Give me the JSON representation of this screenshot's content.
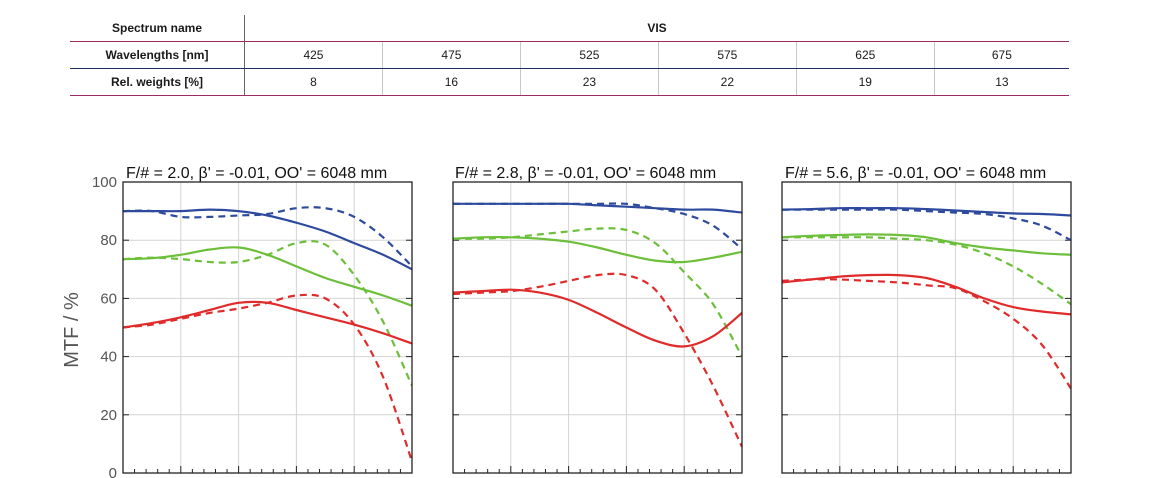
{
  "table": {
    "spectrum_label": "Spectrum name",
    "spectrum_value": "VIS",
    "wavelengths_label": "Wavelengths [nm]",
    "wavelengths": [
      "425",
      "475",
      "525",
      "575",
      "625",
      "675"
    ],
    "weights_label": "Rel. weights [%]",
    "weights": [
      "8",
      "16",
      "23",
      "22",
      "19",
      "13"
    ]
  },
  "colors": {
    "blue": "#2e4a9e",
    "green": "#6cbf3a",
    "red": "#e02b2b",
    "grid": "#d4d4d4",
    "frame": "#222222"
  },
  "chart_data": [
    {
      "type": "line",
      "title": "F/# = 2.0, β' = -0.01, OO' = 6048 mm",
      "ylabel": "MTF / %",
      "ylim": [
        0,
        100
      ],
      "xlim": [
        0,
        1
      ],
      "yticks": [
        "0",
        "20",
        "40",
        "60",
        "80",
        "100"
      ],
      "grid": true,
      "series": [
        {
          "color": "blue",
          "style": "solid",
          "x": [
            0,
            0.1,
            0.2,
            0.3,
            0.4,
            0.5,
            0.6,
            0.7,
            0.8,
            0.9,
            1.0
          ],
          "y": [
            90,
            90,
            90,
            90.5,
            90,
            88.5,
            86,
            83,
            79,
            75,
            70
          ]
        },
        {
          "color": "blue",
          "style": "dashed",
          "x": [
            0,
            0.1,
            0.2,
            0.3,
            0.4,
            0.5,
            0.6,
            0.7,
            0.8,
            0.9,
            1.0
          ],
          "y": [
            90,
            90,
            88,
            88,
            88.5,
            89,
            91,
            91,
            88,
            81,
            71
          ]
        },
        {
          "color": "green",
          "style": "solid",
          "x": [
            0,
            0.1,
            0.2,
            0.3,
            0.4,
            0.5,
            0.6,
            0.7,
            0.8,
            0.9,
            1.0
          ],
          "y": [
            73.5,
            73.8,
            75,
            76.8,
            77.5,
            75,
            71,
            67,
            64,
            61,
            57.5
          ]
        },
        {
          "color": "green",
          "style": "dashed",
          "x": [
            0,
            0.1,
            0.2,
            0.3,
            0.4,
            0.5,
            0.6,
            0.7,
            0.8,
            0.9,
            1.0
          ],
          "y": [
            73.5,
            74,
            73.5,
            72.5,
            72.5,
            75,
            79,
            78.5,
            68,
            52,
            30
          ]
        },
        {
          "color": "red",
          "style": "solid",
          "x": [
            0,
            0.1,
            0.2,
            0.3,
            0.4,
            0.5,
            0.6,
            0.7,
            0.8,
            0.9,
            1.0
          ],
          "y": [
            50,
            51.5,
            53.5,
            56,
            58.5,
            58.5,
            56,
            53.5,
            51,
            48,
            44.5
          ]
        },
        {
          "color": "red",
          "style": "dashed",
          "x": [
            0,
            0.1,
            0.2,
            0.3,
            0.4,
            0.5,
            0.6,
            0.7,
            0.8,
            0.9,
            1.0
          ],
          "y": [
            50,
            51,
            53,
            55,
            56.5,
            58.5,
            61,
            60,
            51,
            33,
            4
          ]
        }
      ]
    },
    {
      "type": "line",
      "title": "F/# = 2.8, β' = -0.01, OO' = 6048 mm",
      "ylim": [
        0,
        100
      ],
      "xlim": [
        0,
        1
      ],
      "grid": true,
      "series": [
        {
          "color": "blue",
          "style": "solid",
          "x": [
            0,
            0.1,
            0.2,
            0.3,
            0.4,
            0.5,
            0.6,
            0.7,
            0.8,
            0.9,
            1.0
          ],
          "y": [
            92.5,
            92.5,
            92.5,
            92.5,
            92.5,
            92,
            91.5,
            91,
            90.5,
            90.5,
            89.5
          ]
        },
        {
          "color": "blue",
          "style": "dashed",
          "x": [
            0,
            0.1,
            0.2,
            0.3,
            0.4,
            0.5,
            0.6,
            0.7,
            0.8,
            0.9,
            1.0
          ],
          "y": [
            92.5,
            92.5,
            92.5,
            92.5,
            92.5,
            92.5,
            92.5,
            91,
            89,
            85,
            77
          ]
        },
        {
          "color": "green",
          "style": "solid",
          "x": [
            0,
            0.1,
            0.2,
            0.3,
            0.4,
            0.5,
            0.6,
            0.7,
            0.8,
            0.9,
            1.0
          ],
          "y": [
            80.5,
            81,
            81,
            80.5,
            79.5,
            77.5,
            75,
            73,
            72.5,
            74,
            76
          ]
        },
        {
          "color": "green",
          "style": "dashed",
          "x": [
            0,
            0.1,
            0.2,
            0.3,
            0.4,
            0.5,
            0.6,
            0.7,
            0.8,
            0.9,
            1.0
          ],
          "y": [
            80.5,
            80.5,
            81,
            82,
            83,
            84,
            83.5,
            79,
            69,
            58,
            40
          ]
        },
        {
          "color": "red",
          "style": "solid",
          "x": [
            0,
            0.1,
            0.2,
            0.3,
            0.4,
            0.5,
            0.6,
            0.7,
            0.8,
            0.9,
            1.0
          ],
          "y": [
            62,
            62.5,
            63,
            62,
            59.5,
            55,
            50,
            45.5,
            43.5,
            47,
            55
          ]
        },
        {
          "color": "red",
          "style": "dashed",
          "x": [
            0,
            0.1,
            0.2,
            0.3,
            0.4,
            0.5,
            0.6,
            0.7,
            0.8,
            0.9,
            1.0
          ],
          "y": [
            61.5,
            62,
            62.5,
            64,
            66,
            68,
            68,
            63,
            48,
            30,
            9
          ]
        }
      ]
    },
    {
      "type": "line",
      "title": "F/# = 5.6, β' = -0.01, OO' = 6048 mm",
      "ylim": [
        0,
        100
      ],
      "xlim": [
        0,
        1
      ],
      "grid": true,
      "series": [
        {
          "color": "blue",
          "style": "solid",
          "x": [
            0,
            0.1,
            0.2,
            0.3,
            0.4,
            0.5,
            0.6,
            0.7,
            0.8,
            0.9,
            1.0
          ],
          "y": [
            90.5,
            90.7,
            91,
            91,
            91,
            90.7,
            90.2,
            89.7,
            89.2,
            89,
            88.5
          ]
        },
        {
          "color": "blue",
          "style": "dashed",
          "x": [
            0,
            0.1,
            0.2,
            0.3,
            0.4,
            0.5,
            0.6,
            0.7,
            0.8,
            0.9,
            1.0
          ],
          "y": [
            90.5,
            90.5,
            90.5,
            90.5,
            90.5,
            90,
            89.5,
            89,
            87.5,
            85,
            80
          ]
        },
        {
          "color": "green",
          "style": "solid",
          "x": [
            0,
            0.1,
            0.2,
            0.3,
            0.4,
            0.5,
            0.6,
            0.7,
            0.8,
            0.9,
            1.0
          ],
          "y": [
            81,
            81.5,
            81.8,
            82,
            81.8,
            81,
            79,
            77.5,
            76.5,
            75.5,
            75
          ]
        },
        {
          "color": "green",
          "style": "dashed",
          "x": [
            0,
            0.1,
            0.2,
            0.3,
            0.4,
            0.5,
            0.6,
            0.7,
            0.8,
            0.9,
            1.0
          ],
          "y": [
            81,
            81,
            81,
            81,
            80.5,
            80,
            78.5,
            75.5,
            71,
            65,
            58
          ]
        },
        {
          "color": "red",
          "style": "solid",
          "x": [
            0,
            0.1,
            0.2,
            0.3,
            0.4,
            0.5,
            0.6,
            0.7,
            0.8,
            0.9,
            1.0
          ],
          "y": [
            65.5,
            66.5,
            67.5,
            68,
            68,
            67,
            64,
            60,
            57,
            55.5,
            54.5
          ]
        },
        {
          "color": "red",
          "style": "dashed",
          "x": [
            0,
            0.1,
            0.2,
            0.3,
            0.4,
            0.5,
            0.6,
            0.7,
            0.8,
            0.9,
            1.0
          ],
          "y": [
            66,
            66.5,
            66.5,
            66,
            65.5,
            64.5,
            63.5,
            59,
            53,
            44,
            29
          ]
        }
      ]
    }
  ]
}
